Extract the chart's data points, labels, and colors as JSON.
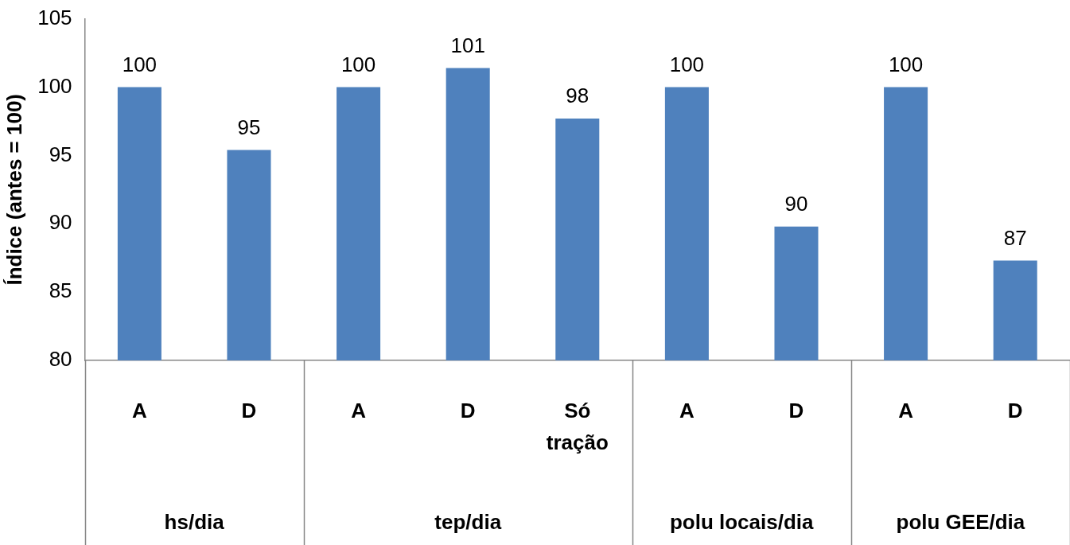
{
  "chart_data": {
    "type": "bar",
    "ylabel": "Índice (antes = 100)",
    "categories": [
      "A",
      "D",
      "A",
      "D",
      "Só\ntração",
      "A",
      "D",
      "A",
      "D"
    ],
    "values": [
      100,
      95.4,
      100,
      101.4,
      97.7,
      100,
      89.8,
      100,
      87.3
    ],
    "value_labels": [
      "100",
      "95",
      "100",
      "101",
      "98",
      "100",
      "90",
      "100",
      "87"
    ],
    "color": "#4f81bd",
    "ylim": [
      80,
      105
    ],
    "yticks": [
      80,
      85,
      90,
      95,
      100,
      105
    ],
    "grid": false,
    "legend": false,
    "annotations": [
      "hs/dia",
      "tep/dia",
      "polu locais/dia",
      "polu GEE/dia"
    ]
  }
}
